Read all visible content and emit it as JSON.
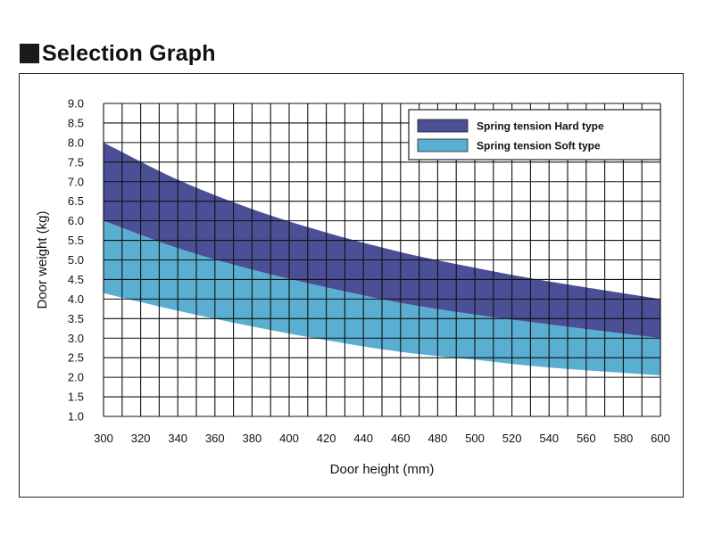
{
  "page": {
    "title": "Selection Graph"
  },
  "chart_data": {
    "type": "area",
    "xlabel": "Door height (mm)",
    "ylabel": "Door weight (kg)",
    "xlim": [
      300,
      600
    ],
    "ylim": [
      1.0,
      9.0
    ],
    "x_ticks": [
      "300",
      "320",
      "340",
      "360",
      "380",
      "400",
      "420",
      "440",
      "460",
      "480",
      "500",
      "520",
      "540",
      "560",
      "580",
      "600"
    ],
    "y_ticks": [
      "1.0",
      "1.5",
      "2.0",
      "2.5",
      "3.0",
      "3.5",
      "4.0",
      "4.5",
      "5.0",
      "5.5",
      "6.0",
      "6.5",
      "7.0",
      "7.5",
      "8.0",
      "8.5",
      "9.0"
    ],
    "grid": true,
    "legend_position": "top-right",
    "series": [
      {
        "name": "Spring tension Hard type",
        "color": "#4b4f96",
        "x": [
          300,
          340,
          380,
          420,
          460,
          500,
          540,
          600
        ],
        "upper": [
          8.0,
          7.05,
          6.3,
          5.7,
          5.2,
          4.8,
          4.45,
          4.0
        ],
        "lower": [
          6.0,
          5.3,
          4.75,
          4.3,
          3.9,
          3.6,
          3.35,
          3.0
        ]
      },
      {
        "name": "Spring tension Soft type",
        "color": "#5aaed2",
        "x": [
          300,
          340,
          380,
          420,
          460,
          500,
          540,
          600
        ],
        "upper": [
          6.0,
          5.3,
          4.75,
          4.3,
          3.9,
          3.6,
          3.35,
          3.0
        ],
        "lower": [
          4.15,
          3.7,
          3.3,
          2.95,
          2.65,
          2.45,
          2.25,
          2.05
        ]
      }
    ]
  }
}
